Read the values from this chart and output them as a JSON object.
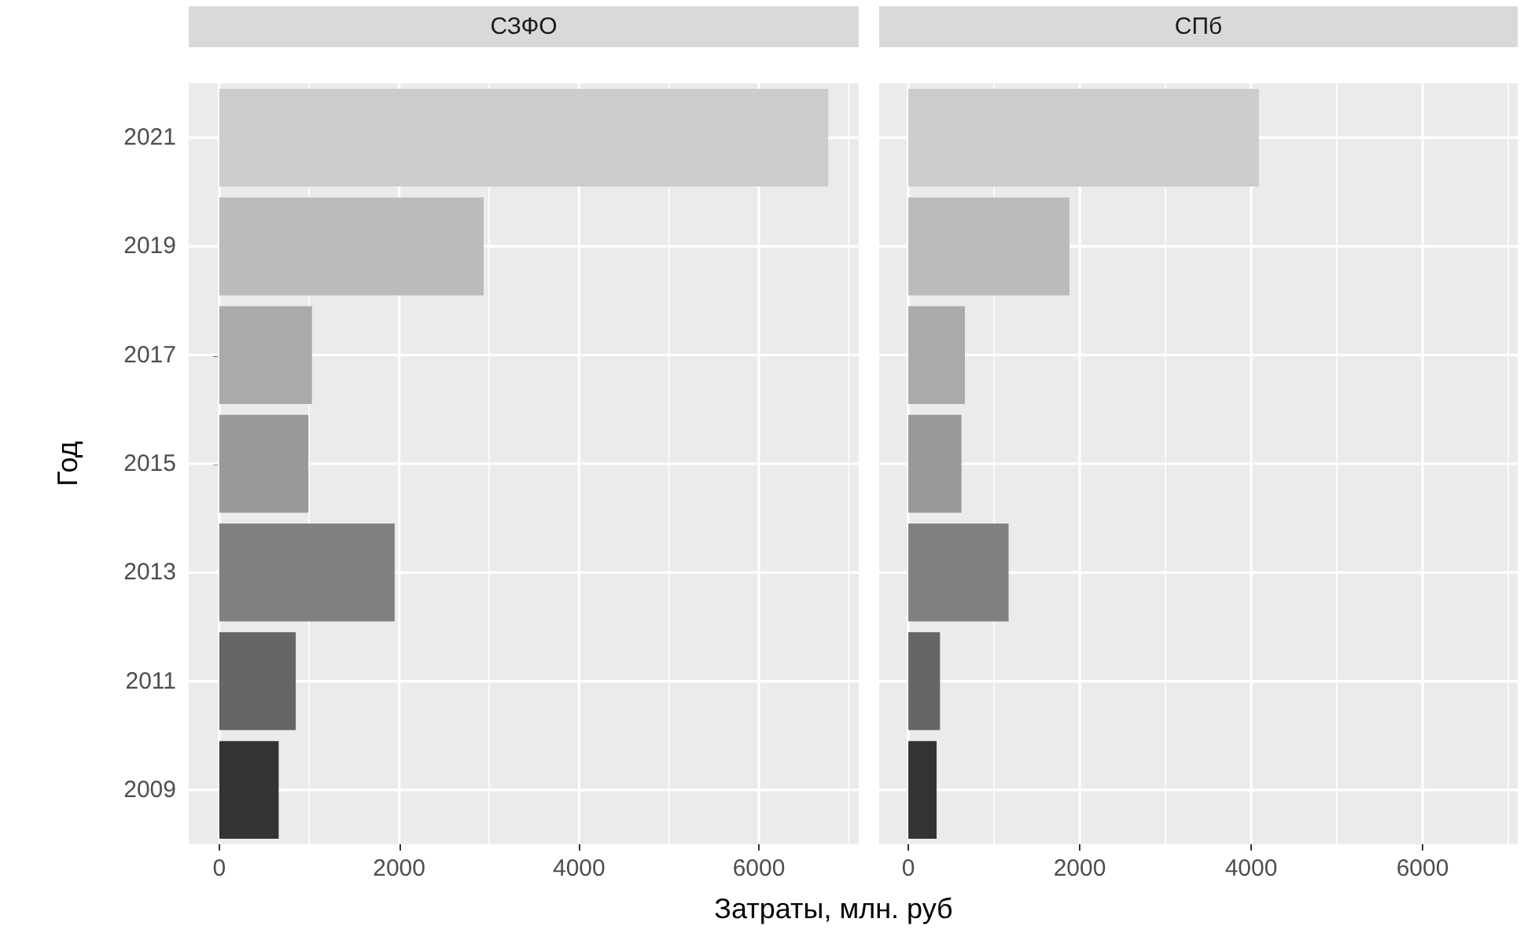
{
  "chart_data": [
    {
      "type": "bar",
      "orientation": "horizontal",
      "title": "СЗФО",
      "xlabel": "Затраты, млн. руб",
      "ylabel": "Год",
      "categories": [
        "2021",
        "2019",
        "2017",
        "2015",
        "2013",
        "2011",
        "2009"
      ],
      "values": [
        6770,
        2940,
        1030,
        990,
        1950,
        850,
        660
      ],
      "colors": [
        "#cccccc",
        "#bbbbbb",
        "#aaaaaa",
        "#999999",
        "#808080",
        "#666666",
        "#333333"
      ],
      "xlim": [
        -340,
        7110
      ],
      "xticks": [
        0,
        {
          "value": 1000,
          "label": null
        },
        2000,
        {
          "value": 3000,
          "label": null
        },
        4000,
        {
          "value": 5000,
          "label": null
        },
        6000,
        {
          "value": 7000,
          "label": null
        }
      ],
      "grid": true
    },
    {
      "type": "bar",
      "orientation": "horizontal",
      "title": "СПб",
      "tick_labels": "x",
      "categories": [
        "2021",
        "2019",
        "2017",
        "2015",
        "2013",
        "2011",
        "2009"
      ],
      "values": [
        4090,
        1880,
        660,
        620,
        1170,
        370,
        330
      ],
      "colors": [
        "#cccccc",
        "#bbbbbb",
        "#aaaaaa",
        "#999999",
        "#808080",
        "#666666",
        "#333333"
      ],
      "xlim": [
        -340,
        7110
      ],
      "xticks": [
        0,
        {
          "value": 1000,
          "label": null
        },
        2000,
        {
          "value": 3000,
          "label": null
        },
        4000,
        {
          "value": 5000,
          "label": null
        },
        6000,
        {
          "value": 7000,
          "label": null
        }
      ],
      "grid": true
    }
  ]
}
